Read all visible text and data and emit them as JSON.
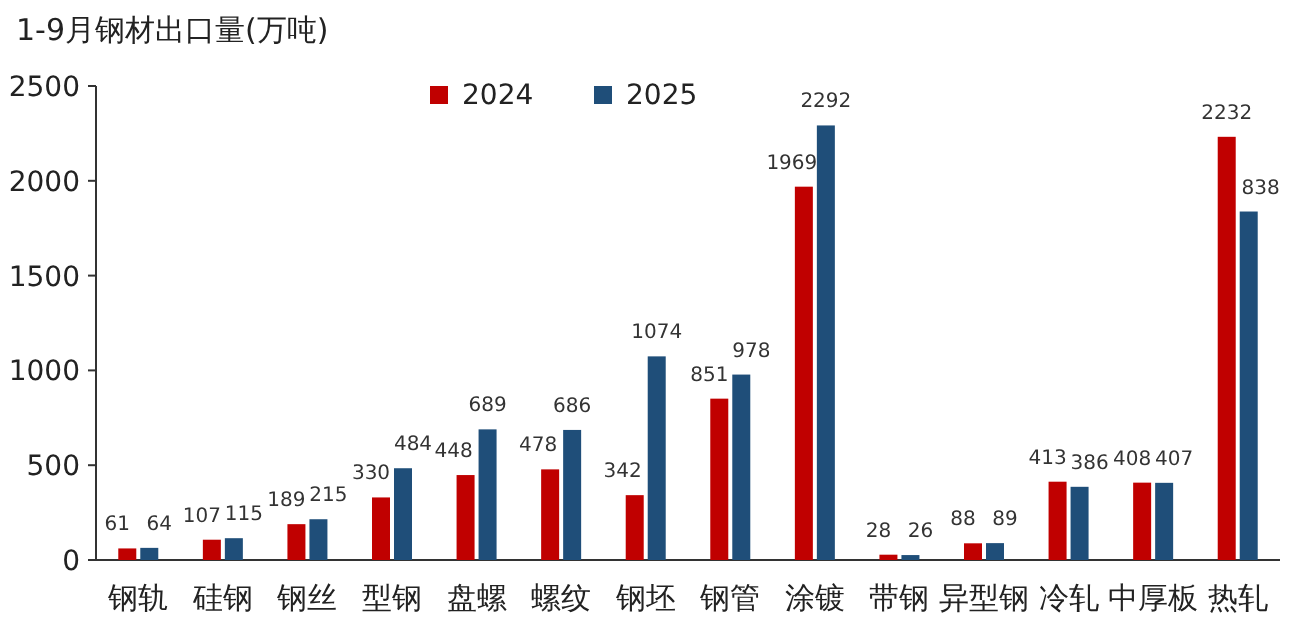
{
  "chart_data": {
    "type": "bar",
    "title": "1-9月钢材出口量(万吨)",
    "categories": [
      "钢轨",
      "硅钢",
      "钢丝",
      "型钢",
      "盘螺",
      "螺纹",
      "钢坯",
      "钢管",
      "涂镀",
      "带钢",
      "异型钢",
      "冷轧",
      "中厚板",
      "热轧"
    ],
    "series": [
      {
        "name": "2024",
        "color": "#c00000",
        "values": [
          61,
          107,
          189,
          330,
          448,
          478,
          342,
          851,
          1969,
          28,
          88,
          413,
          408,
          2232
        ]
      },
      {
        "name": "2025",
        "color": "#1f4e79",
        "values": [
          64,
          115,
          215,
          484,
          689,
          686,
          1074,
          978,
          2292,
          26,
          89,
          386,
          407,
          1838
        ],
        "value_labels": [
          "64",
          "115",
          "215",
          "484",
          "689",
          "686",
          "1074",
          "978",
          "2292",
          "26",
          "89",
          "386",
          "407",
          null
        ]
      }
    ],
    "annotations": [
      {
        "text": "838",
        "x": "热轧",
        "y": 1838
      }
    ],
    "ylim": [
      0,
      2500
    ],
    "yticks": [
      0,
      500,
      1000,
      1500,
      2000,
      2500
    ],
    "data_labels": true,
    "legend": "top",
    "grid": false
  }
}
